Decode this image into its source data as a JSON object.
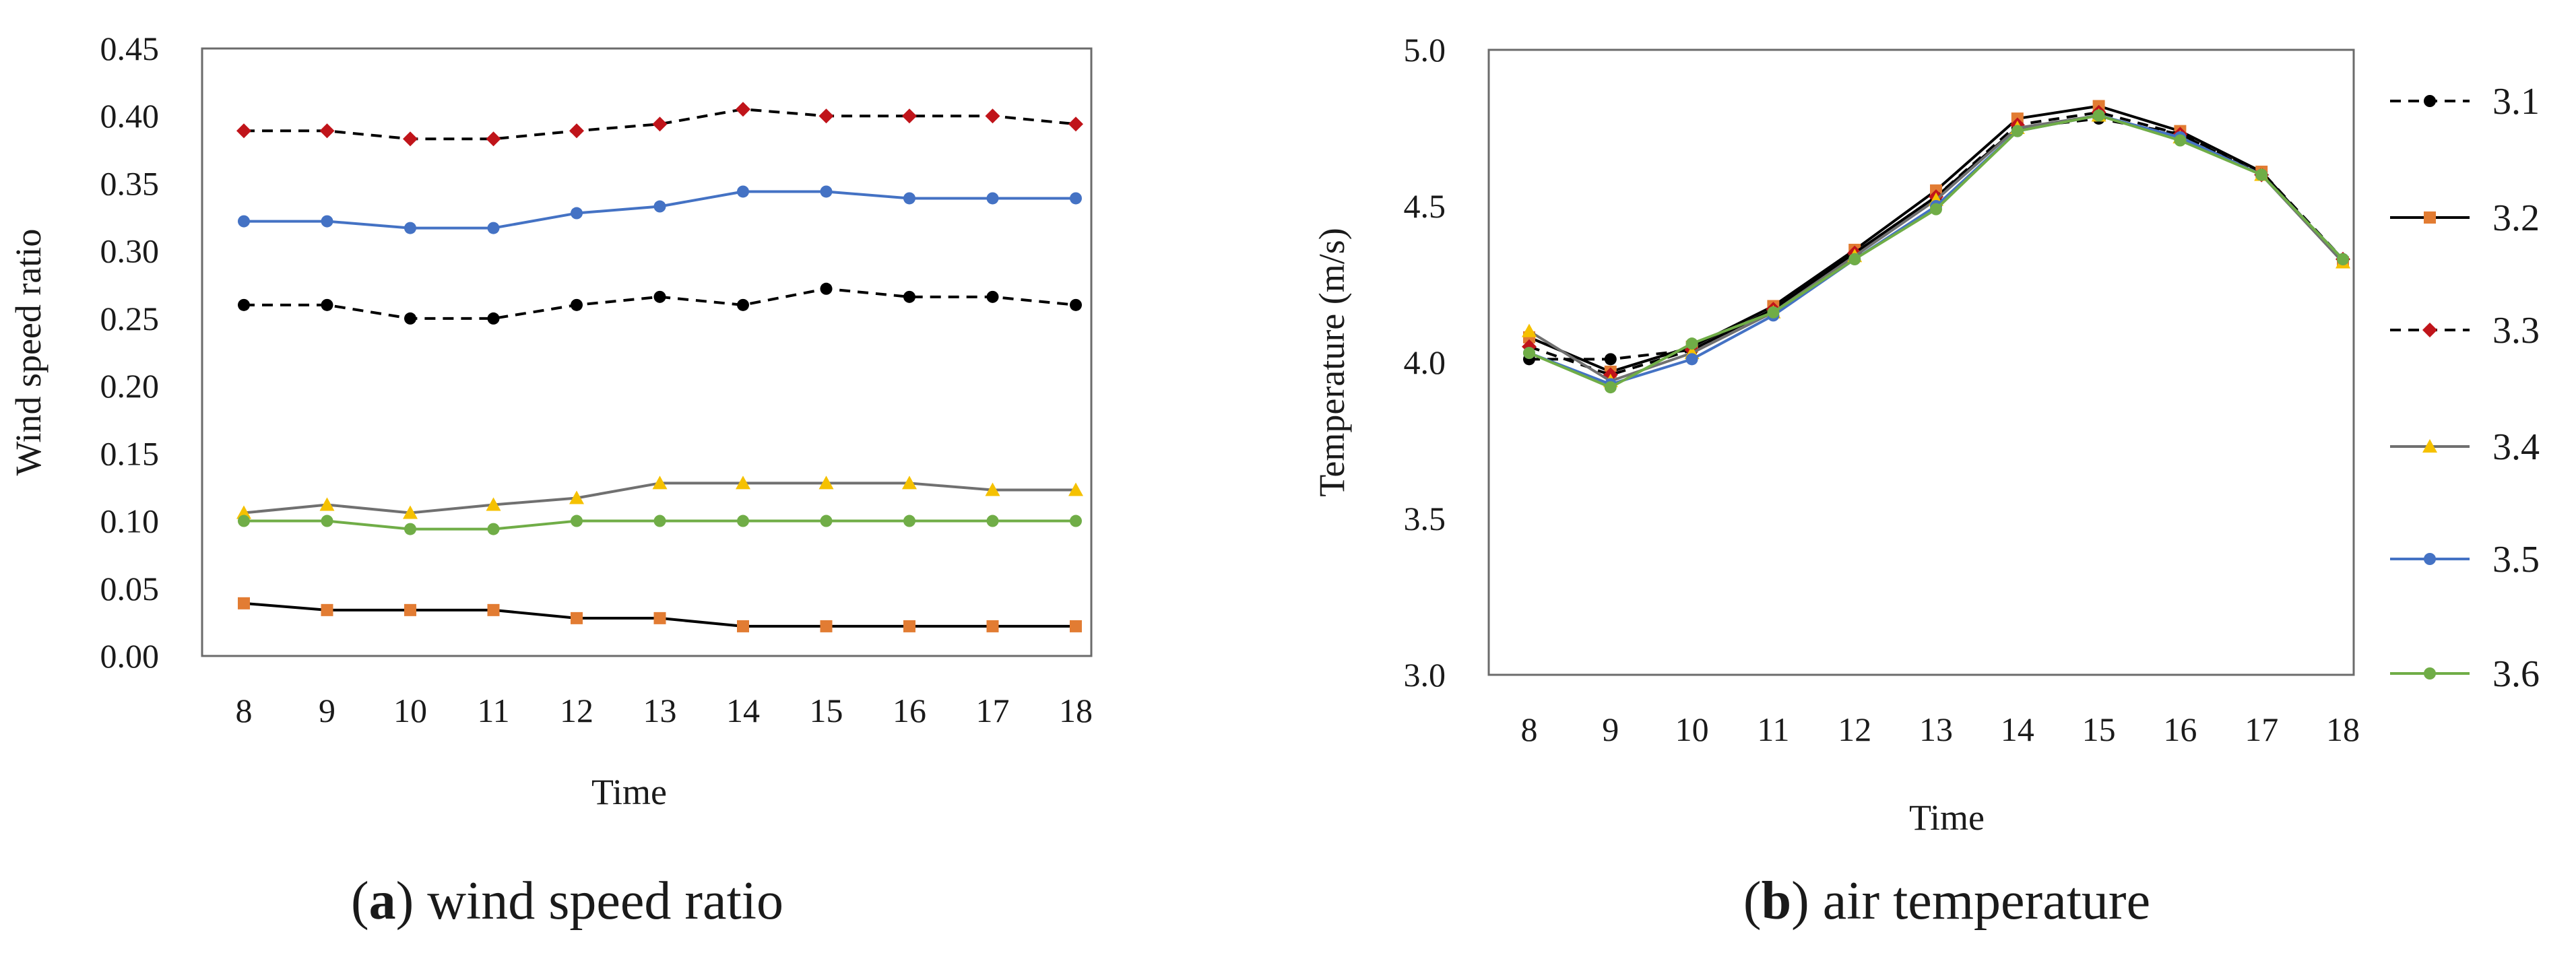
{
  "chart_data": [
    {
      "type": "line",
      "id": "a",
      "title": "",
      "caption": {
        "letter": "a",
        "text": " wind speed ratio"
      },
      "xlabel": "Time",
      "ylabel": "Wind speed ratio",
      "x": [
        8,
        9,
        10,
        11,
        12,
        13,
        14,
        15,
        16,
        17,
        18
      ],
      "ylim": [
        0,
        0.45
      ],
      "yticks": [
        "0.00",
        "0.05",
        "0.10",
        "0.15",
        "0.20",
        "0.25",
        "0.30",
        "0.35",
        "0.40",
        "0.45"
      ],
      "grid": false,
      "series": [
        {
          "name": "3.1",
          "values": [
            0.26,
            0.26,
            0.25,
            0.25,
            0.26,
            0.266,
            0.26,
            0.272,
            0.266,
            0.266,
            0.26
          ]
        },
        {
          "name": "3.2",
          "values": [
            0.039,
            0.034,
            0.034,
            0.034,
            0.028,
            0.028,
            0.022,
            0.022,
            0.022,
            0.022,
            0.022
          ]
        },
        {
          "name": "3.3",
          "values": [
            0.389,
            0.389,
            0.383,
            0.383,
            0.389,
            0.394,
            0.405,
            0.4,
            0.4,
            0.4,
            0.394
          ]
        },
        {
          "name": "3.4",
          "values": [
            0.106,
            0.112,
            0.106,
            0.112,
            0.117,
            0.128,
            0.128,
            0.128,
            0.128,
            0.123,
            0.123
          ]
        },
        {
          "name": "3.5",
          "values": [
            0.322,
            0.322,
            0.317,
            0.317,
            0.328,
            0.333,
            0.344,
            0.344,
            0.339,
            0.339,
            0.339
          ]
        },
        {
          "name": "3.6",
          "values": [
            0.1,
            0.1,
            0.094,
            0.094,
            0.1,
            0.1,
            0.1,
            0.1,
            0.1,
            0.1,
            0.1
          ]
        }
      ]
    },
    {
      "type": "line",
      "id": "b",
      "title": "",
      "caption": {
        "letter": "b",
        "text": " air temperature"
      },
      "xlabel": "Time",
      "ylabel": "Temperature (m/s)",
      "x": [
        8,
        9,
        10,
        11,
        12,
        13,
        14,
        15,
        16,
        17,
        18
      ],
      "ylim": [
        3.0,
        5.0
      ],
      "yticks": [
        "3.0",
        "3.5",
        "4.0",
        "4.5",
        "5.0"
      ],
      "grid": false,
      "legend_position": "right",
      "series": [
        {
          "name": "3.1",
          "values": [
            4.01,
            4.01,
            4.04,
            4.17,
            4.35,
            4.53,
            4.75,
            4.78,
            4.73,
            4.61,
            4.33
          ]
        },
        {
          "name": "3.2",
          "values": [
            4.08,
            3.97,
            4.05,
            4.18,
            4.36,
            4.55,
            4.78,
            4.82,
            4.74,
            4.61,
            4.32
          ]
        },
        {
          "name": "3.3",
          "values": [
            4.05,
            3.96,
            4.04,
            4.17,
            4.35,
            4.53,
            4.76,
            4.8,
            4.73,
            4.6,
            4.33
          ]
        },
        {
          "name": "3.4",
          "values": [
            4.1,
            3.94,
            4.03,
            4.16,
            4.34,
            4.52,
            4.75,
            4.79,
            4.72,
            4.6,
            4.32
          ]
        },
        {
          "name": "3.5",
          "values": [
            4.03,
            3.93,
            4.01,
            4.15,
            4.33,
            4.5,
            4.74,
            4.79,
            4.72,
            4.6,
            4.33
          ]
        },
        {
          "name": "3.6",
          "values": [
            4.03,
            3.92,
            4.06,
            4.16,
            4.33,
            4.49,
            4.74,
            4.79,
            4.71,
            4.6,
            4.33
          ]
        }
      ]
    }
  ],
  "series_styles": [
    {
      "name": "3.1",
      "color": "#000000",
      "marker": "circle",
      "marker_color": "#000000",
      "dash": true
    },
    {
      "name": "3.2",
      "color": "#000000",
      "marker": "square",
      "marker_color": "#E27C33",
      "dash": false
    },
    {
      "name": "3.3",
      "color": "#000000",
      "marker": "diamond",
      "marker_color": "#C0141A",
      "dash": true
    },
    {
      "name": "3.4",
      "color": "#707070",
      "marker": "triangle",
      "marker_color": "#F5C100",
      "dash": false
    },
    {
      "name": "3.5",
      "color": "#4472C4",
      "marker": "circle",
      "marker_color": "#4472C4",
      "dash": false
    },
    {
      "name": "3.6",
      "color": "#70AD47",
      "marker": "circle",
      "marker_color": "#70AD47",
      "dash": false
    }
  ]
}
